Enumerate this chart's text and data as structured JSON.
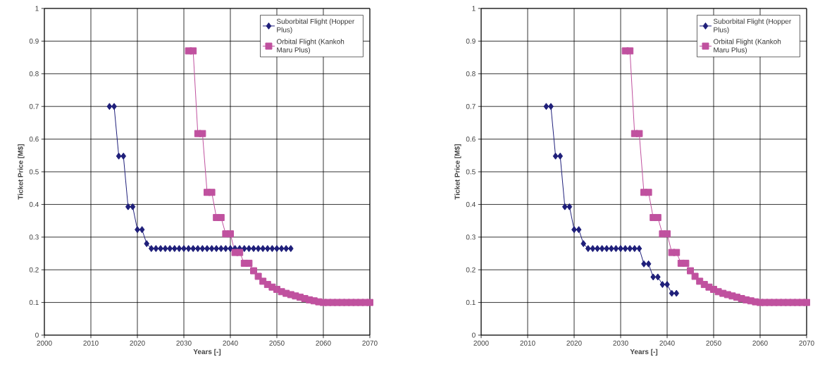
{
  "chart_data": [
    {
      "type": "line",
      "xlabel": "Years [-]",
      "ylabel": "Ticket Price [M$]",
      "xlim": [
        2000,
        2070
      ],
      "ylim": [
        0,
        1
      ],
      "xticks": [
        2000,
        2010,
        2020,
        2030,
        2040,
        2050,
        2060,
        2070
      ],
      "yticks": [
        0,
        0.1,
        0.2,
        0.3,
        0.4,
        0.5,
        0.6,
        0.7,
        0.8,
        0.9,
        1
      ],
      "grid": true,
      "legend": "top right",
      "line_style": "solid",
      "series": [
        {
          "name": "Suborbital Flight (Hopper Plus)",
          "color": "#1f1f7a",
          "marker": "diamond",
          "x": [
            2014,
            2015,
            2016,
            2017,
            2018,
            2019,
            2020,
            2021,
            2022,
            2023,
            2024,
            2025,
            2026,
            2027,
            2028,
            2029,
            2030,
            2031,
            2032,
            2033,
            2034,
            2035,
            2036,
            2037,
            2038,
            2039,
            2040,
            2041,
            2042,
            2043,
            2044,
            2045,
            2046,
            2047,
            2048,
            2049,
            2050,
            2051,
            2052,
            2053
          ],
          "values": [
            0.7,
            0.7,
            0.548,
            0.548,
            0.393,
            0.393,
            0.323,
            0.323,
            0.28,
            0.265,
            0.265,
            0.265,
            0.265,
            0.265,
            0.265,
            0.265,
            0.265,
            0.265,
            0.265,
            0.265,
            0.265,
            0.265,
            0.265,
            0.265,
            0.265,
            0.265,
            0.265,
            0.265,
            0.265,
            0.265,
            0.265,
            0.265,
            0.265,
            0.265,
            0.265,
            0.265,
            0.265,
            0.265,
            0.265,
            0.265
          ]
        },
        {
          "name": "Orbital Flight (Kankoh Maru Plus)",
          "color": "#c0519f",
          "marker": "square",
          "x": [
            2031,
            2032,
            2033,
            2034,
            2035,
            2036,
            2037,
            2038,
            2039,
            2040,
            2041,
            2042,
            2043,
            2044,
            2045,
            2046,
            2047,
            2048,
            2049,
            2050,
            2051,
            2052,
            2053,
            2054,
            2055,
            2056,
            2057,
            2058,
            2059,
            2060,
            2061,
            2062,
            2063,
            2064,
            2065,
            2066,
            2067,
            2068,
            2069,
            2070
          ],
          "values": [
            0.87,
            0.87,
            0.617,
            0.617,
            0.437,
            0.437,
            0.36,
            0.36,
            0.31,
            0.31,
            0.253,
            0.253,
            0.22,
            0.22,
            0.197,
            0.18,
            0.165,
            0.155,
            0.147,
            0.14,
            0.133,
            0.128,
            0.124,
            0.12,
            0.116,
            0.112,
            0.108,
            0.105,
            0.102,
            0.1,
            0.1,
            0.1,
            0.1,
            0.1,
            0.1,
            0.1,
            0.1,
            0.1,
            0.1,
            0.1
          ]
        }
      ]
    },
    {
      "type": "line",
      "xlabel": "Years [-]",
      "ylabel": "Ticket Price [M$]",
      "xlim": [
        2000,
        2070
      ],
      "ylim": [
        0,
        1
      ],
      "xticks": [
        2000,
        2010,
        2020,
        2030,
        2040,
        2050,
        2060,
        2070
      ],
      "yticks": [
        0,
        0.1,
        0.2,
        0.3,
        0.4,
        0.5,
        0.6,
        0.7,
        0.8,
        0.9,
        1
      ],
      "grid": true,
      "legend": "top right",
      "line_style": "solid",
      "series": [
        {
          "name": "Suborbital Flight (Hopper Plus)",
          "color": "#1f1f7a",
          "marker": "diamond",
          "x": [
            2014,
            2015,
            2016,
            2017,
            2018,
            2019,
            2020,
            2021,
            2022,
            2023,
            2024,
            2025,
            2026,
            2027,
            2028,
            2029,
            2030,
            2031,
            2032,
            2033,
            2034,
            2035,
            2036,
            2037,
            2038,
            2039,
            2040,
            2041,
            2042
          ],
          "values": [
            0.7,
            0.7,
            0.548,
            0.548,
            0.393,
            0.393,
            0.323,
            0.323,
            0.28,
            0.265,
            0.265,
            0.265,
            0.265,
            0.265,
            0.265,
            0.265,
            0.265,
            0.265,
            0.265,
            0.265,
            0.265,
            0.218,
            0.218,
            0.178,
            0.178,
            0.155,
            0.155,
            0.128,
            0.128
          ]
        },
        {
          "name": "Orbital Flight (Kankoh Maru Plus)",
          "color": "#c0519f",
          "marker": "square",
          "x": [
            2031,
            2032,
            2033,
            2034,
            2035,
            2036,
            2037,
            2038,
            2039,
            2040,
            2041,
            2042,
            2043,
            2044,
            2045,
            2046,
            2047,
            2048,
            2049,
            2050,
            2051,
            2052,
            2053,
            2054,
            2055,
            2056,
            2057,
            2058,
            2059,
            2060,
            2061,
            2062,
            2063,
            2064,
            2065,
            2066,
            2067,
            2068,
            2069,
            2070
          ],
          "values": [
            0.87,
            0.87,
            0.617,
            0.617,
            0.437,
            0.437,
            0.36,
            0.36,
            0.31,
            0.31,
            0.253,
            0.253,
            0.22,
            0.22,
            0.197,
            0.18,
            0.165,
            0.155,
            0.147,
            0.14,
            0.133,
            0.128,
            0.124,
            0.12,
            0.116,
            0.112,
            0.108,
            0.105,
            0.102,
            0.1,
            0.1,
            0.1,
            0.1,
            0.1,
            0.1,
            0.1,
            0.1,
            0.1,
            0.1,
            0.1
          ]
        }
      ]
    }
  ]
}
